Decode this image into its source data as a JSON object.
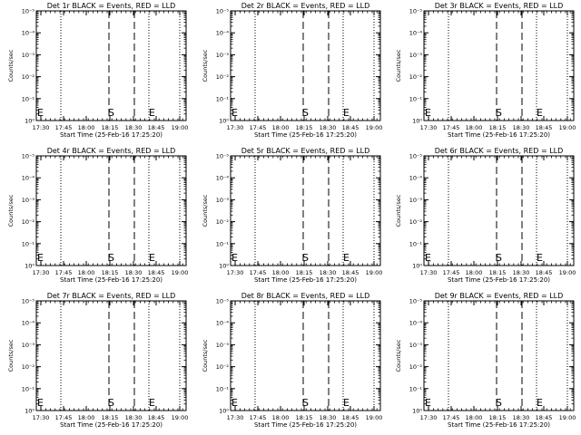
{
  "chart_data": [
    {
      "type": "line",
      "title": "Det 1r BLACK = Events, RED = LLD",
      "xlabel": "Start Time (25-Feb-16 17:25:20)",
      "ylabel": "Counts/sec",
      "xticks": [
        "17:30",
        "17:45",
        "18:00",
        "18:15",
        "18:30",
        "18:45",
        "19:00"
      ],
      "yticks": [
        "10⁰",
        "10⁻¹",
        "10⁻²",
        "10⁻³",
        "10⁻⁴",
        "10⁻⁵"
      ],
      "markers": {
        "start": "S",
        "end": "E"
      },
      "series": []
    },
    {
      "type": "line",
      "title": "Det 2r BLACK = Events, RED = LLD",
      "xlabel": "Start Time (25-Feb-16 17:25:20)",
      "ylabel": "Counts/sec",
      "xticks": [
        "17:30",
        "17:45",
        "18:00",
        "18:15",
        "18:30",
        "18:45",
        "19:00"
      ],
      "yticks": [
        "10⁰",
        "10⁻¹",
        "10⁻²",
        "10⁻³",
        "10⁻⁴",
        "10⁻⁵"
      ],
      "markers": {
        "start": "S",
        "end": "E"
      },
      "series": []
    },
    {
      "type": "line",
      "title": "Det 3r BLACK = Events, RED = LLD",
      "xlabel": "Start Time (25-Feb-16 17:25:20)",
      "ylabel": "Counts/sec",
      "xticks": [
        "17:30",
        "17:45",
        "18:00",
        "18:15",
        "18:30",
        "18:45",
        "19:00"
      ],
      "yticks": [
        "10⁰",
        "10⁻¹",
        "10⁻²",
        "10⁻³",
        "10⁻⁴",
        "10⁻⁵"
      ],
      "markers": {
        "start": "S",
        "end": "E"
      },
      "series": []
    },
    {
      "type": "line",
      "title": "Det 4r BLACK = Events, RED = LLD",
      "xlabel": "Start Time (25-Feb-16 17:25:20)",
      "ylabel": "Counts/sec",
      "xticks": [
        "17:30",
        "17:45",
        "18:00",
        "18:15",
        "18:30",
        "18:45",
        "19:00"
      ],
      "yticks": [
        "10⁰",
        "10⁻¹",
        "10⁻²",
        "10⁻³",
        "10⁻⁴",
        "10⁻⁵"
      ],
      "markers": {
        "start": "S",
        "end": "E"
      },
      "series": []
    },
    {
      "type": "line",
      "title": "Det 5r BLACK = Events, RED = LLD",
      "xlabel": "Start Time (25-Feb-16 17:25:20)",
      "ylabel": "Counts/sec",
      "xticks": [
        "17:30",
        "17:45",
        "18:00",
        "18:15",
        "18:30",
        "18:45",
        "19:00"
      ],
      "yticks": [
        "10⁰",
        "10⁻¹",
        "10⁻²",
        "10⁻³",
        "10⁻⁴",
        "10⁻⁵"
      ],
      "markers": {
        "start": "S",
        "end": "E"
      },
      "series": []
    },
    {
      "type": "line",
      "title": "Det 6r BLACK = Events, RED = LLD",
      "xlabel": "Start Time (25-Feb-16 17:25:20)",
      "ylabel": "Counts/sec",
      "xticks": [
        "17:30",
        "17:45",
        "18:00",
        "18:15",
        "18:30",
        "18:45",
        "19:00"
      ],
      "yticks": [
        "10⁰",
        "10⁻¹",
        "10⁻²",
        "10⁻³",
        "10⁻⁴",
        "10⁻⁵"
      ],
      "markers": {
        "start": "S",
        "end": "E"
      },
      "series": []
    },
    {
      "type": "line",
      "title": "Det 7r BLACK = Events, RED = LLD",
      "xlabel": "Start Time (25-Feb-16 17:25:20)",
      "ylabel": "Counts/sec",
      "xticks": [
        "17:30",
        "17:45",
        "18:00",
        "18:15",
        "18:30",
        "18:45",
        "19:00"
      ],
      "yticks": [
        "10⁰",
        "10⁻¹",
        "10⁻²",
        "10⁻³",
        "10⁻⁴",
        "10⁻⁵"
      ],
      "markers": {
        "start": "S",
        "end": "E"
      },
      "series": []
    },
    {
      "type": "line",
      "title": "Det 8r BLACK = Events, RED = LLD",
      "xlabel": "Start Time (25-Feb-16 17:25:20)",
      "ylabel": "Counts/sec",
      "xticks": [
        "17:30",
        "17:45",
        "18:00",
        "18:15",
        "18:30",
        "18:45",
        "19:00"
      ],
      "yticks": [
        "10⁰",
        "10⁻¹",
        "10⁻²",
        "10⁻³",
        "10⁻⁴",
        "10⁻⁵"
      ],
      "markers": {
        "start": "S",
        "end": "E"
      },
      "series": []
    },
    {
      "type": "line",
      "title": "Det 9r BLACK = Events, RED = LLD",
      "xlabel": "Start Time (25-Feb-16 17:25:20)",
      "ylabel": "Counts/sec",
      "xticks": [
        "17:30",
        "17:45",
        "18:00",
        "18:15",
        "18:30",
        "18:45",
        "19:00"
      ],
      "yticks": [
        "10⁰",
        "10⁻¹",
        "10⁻²",
        "10⁻³",
        "10⁻⁴",
        "10⁻⁵"
      ],
      "markers": {
        "start": "S",
        "end": "E"
      },
      "series": []
    }
  ]
}
